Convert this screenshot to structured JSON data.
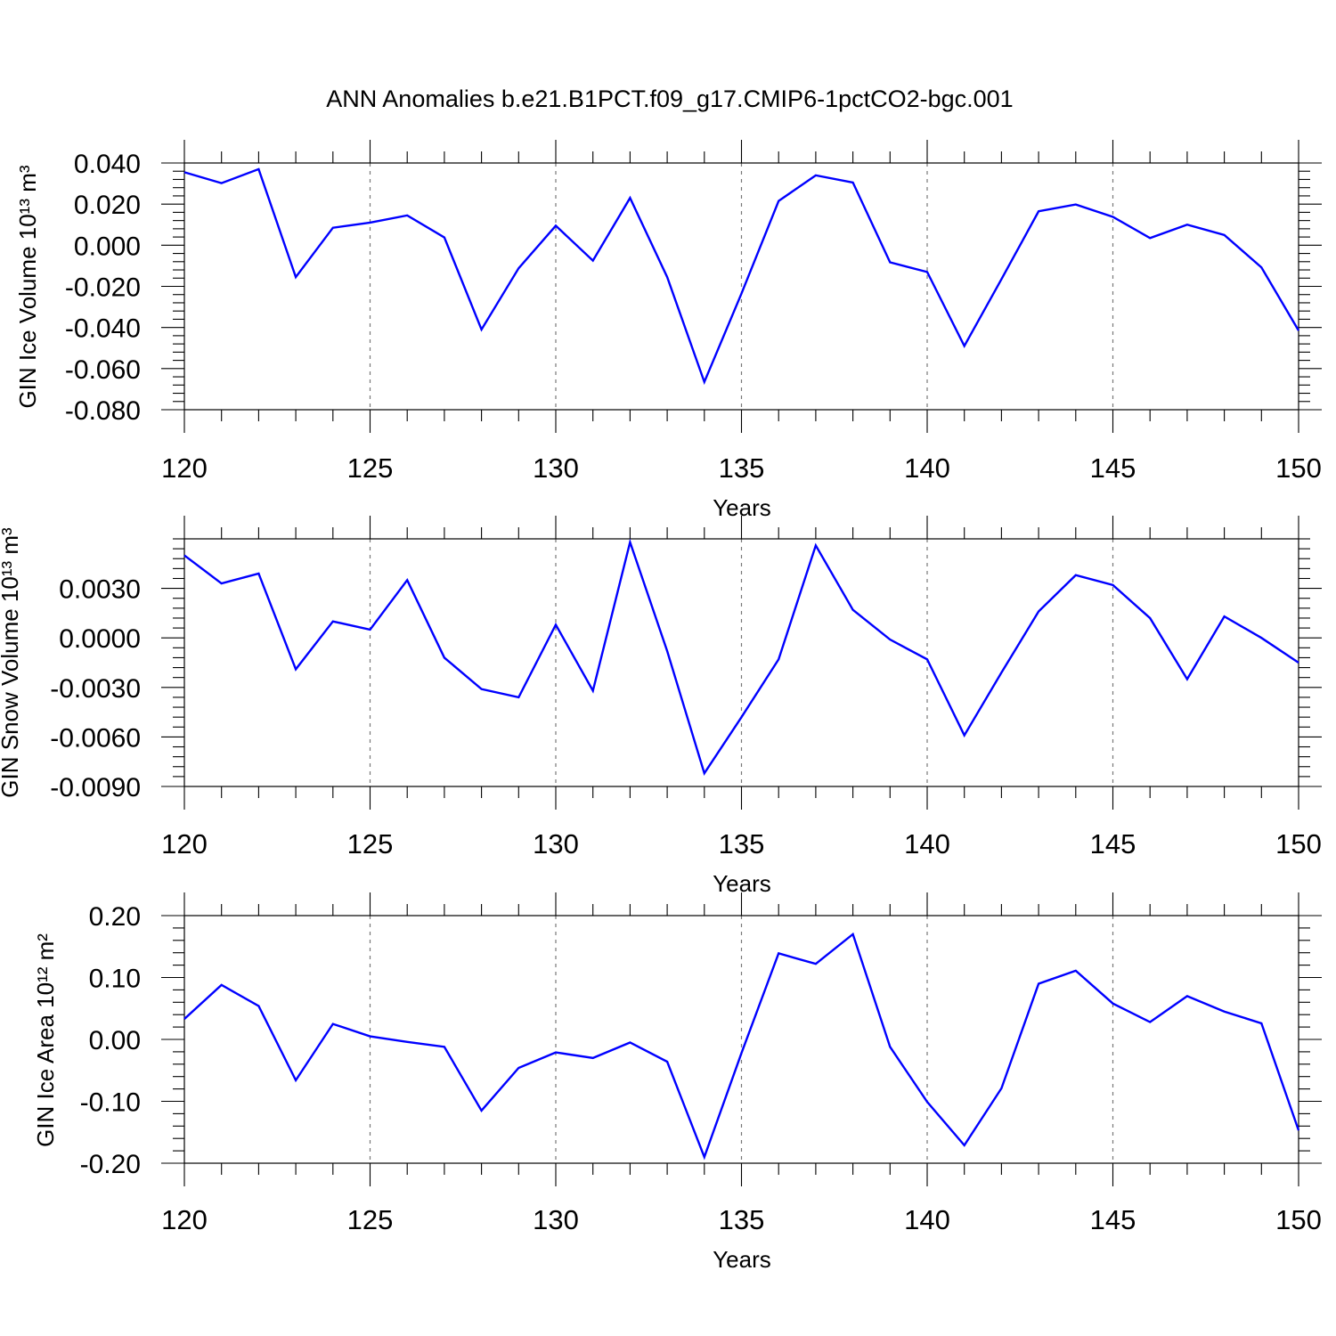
{
  "title": "ANN Anomalies b.e21.B1PCT.f09_g17.CMIP6-1pctCO2-bgc.001",
  "colors": {
    "series": "#0000ff",
    "axes": "#000000",
    "grid": "#777777"
  },
  "chart_data": [
    {
      "type": "line",
      "ylabel": "GIN Ice Volume",
      "yunit": "10¹³ m³",
      "xlabel": "Years",
      "xlim": [
        120,
        150
      ],
      "ylim": [
        -0.08,
        0.04
      ],
      "yticks": [
        0.04,
        0.02,
        0.0,
        -0.02,
        -0.04,
        -0.06,
        -0.08
      ],
      "ytick_labels": [
        "0.040",
        "0.020",
        "0.000",
        "-0.020",
        "-0.040",
        "-0.060",
        "-0.080"
      ],
      "xticks": [
        120,
        125,
        130,
        135,
        140,
        145,
        150
      ],
      "xtick_labels": [
        "120",
        "125",
        "130",
        "135",
        "140",
        "145",
        "150"
      ],
      "grid": "dashed vertical at major x ticks",
      "x": [
        120,
        121,
        122,
        123,
        124,
        125,
        126,
        127,
        128,
        129,
        130,
        131,
        132,
        133,
        134,
        135,
        136,
        137,
        138,
        139,
        140,
        141,
        142,
        143,
        144,
        145,
        146,
        147,
        148,
        149,
        150
      ],
      "values": [
        0.0355,
        0.0302,
        0.037,
        -0.0155,
        0.0085,
        0.011,
        0.0145,
        0.0038,
        -0.041,
        -0.0112,
        0.0095,
        -0.0075,
        0.023,
        -0.0155,
        -0.0665,
        -0.0235,
        0.0215,
        0.034,
        0.0305,
        -0.0083,
        -0.013,
        -0.049,
        -0.0165,
        0.0165,
        0.0198,
        0.0138,
        0.0035,
        0.01,
        0.005,
        -0.0108,
        -0.0415
      ]
    },
    {
      "type": "line",
      "ylabel": "GIN Snow Volume",
      "yunit": "10¹³ m³",
      "xlabel": "Years",
      "xlim": [
        120,
        150
      ],
      "ylim": [
        -0.009,
        0.006
      ],
      "yticks": [
        0.003,
        0.0,
        -0.003,
        -0.006,
        -0.009
      ],
      "ytick_labels": [
        "0.0030",
        "0.0000",
        "-0.0030",
        "-0.0060",
        "-0.0090"
      ],
      "xticks": [
        120,
        125,
        130,
        135,
        140,
        145,
        150
      ],
      "xtick_labels": [
        "120",
        "125",
        "130",
        "135",
        "140",
        "145",
        "150"
      ],
      "grid": "dashed vertical at major x ticks",
      "x": [
        120,
        121,
        122,
        123,
        124,
        125,
        126,
        127,
        128,
        129,
        130,
        131,
        132,
        133,
        134,
        135,
        136,
        137,
        138,
        139,
        140,
        141,
        142,
        143,
        144,
        145,
        146,
        147,
        148,
        149,
        150
      ],
      "values": [
        0.005,
        0.0033,
        0.0039,
        -0.0019,
        0.001,
        0.0005,
        0.0035,
        -0.0012,
        -0.0031,
        -0.0036,
        0.0008,
        -0.0032,
        0.0058,
        -0.0008,
        -0.0082,
        -0.0048,
        -0.0013,
        0.0056,
        0.0017,
        -0.0001,
        -0.0013,
        -0.0059,
        -0.0021,
        0.0016,
        0.0038,
        0.0032,
        0.0012,
        -0.0025,
        0.0013,
        0.0,
        -0.0015
      ]
    },
    {
      "type": "line",
      "ylabel": "GIN Ice Area",
      "yunit": "10¹² m²",
      "xlabel": "Years",
      "xlim": [
        120,
        150
      ],
      "ylim": [
        -0.2,
        0.2
      ],
      "yticks": [
        0.2,
        0.1,
        0.0,
        -0.1,
        -0.2
      ],
      "ytick_labels": [
        "0.20",
        "0.10",
        "0.00",
        "-0.10",
        "-0.20"
      ],
      "xticks": [
        120,
        125,
        130,
        135,
        140,
        145,
        150
      ],
      "xtick_labels": [
        "120",
        "125",
        "130",
        "135",
        "140",
        "145",
        "150"
      ],
      "grid": "dashed vertical at major x ticks",
      "x": [
        120,
        121,
        122,
        123,
        124,
        125,
        126,
        127,
        128,
        129,
        130,
        131,
        132,
        133,
        134,
        135,
        136,
        137,
        138,
        139,
        140,
        141,
        142,
        143,
        144,
        145,
        146,
        147,
        148,
        149,
        150
      ],
      "values": [
        0.033,
        0.088,
        0.054,
        -0.066,
        0.025,
        0.005,
        -0.004,
        -0.012,
        -0.115,
        -0.046,
        -0.021,
        -0.03,
        -0.005,
        -0.036,
        -0.19,
        -0.022,
        0.139,
        0.122,
        0.17,
        -0.012,
        -0.101,
        -0.171,
        -0.079,
        0.09,
        0.111,
        0.058,
        0.028,
        0.07,
        0.045,
        0.026,
        -0.147
      ]
    }
  ]
}
